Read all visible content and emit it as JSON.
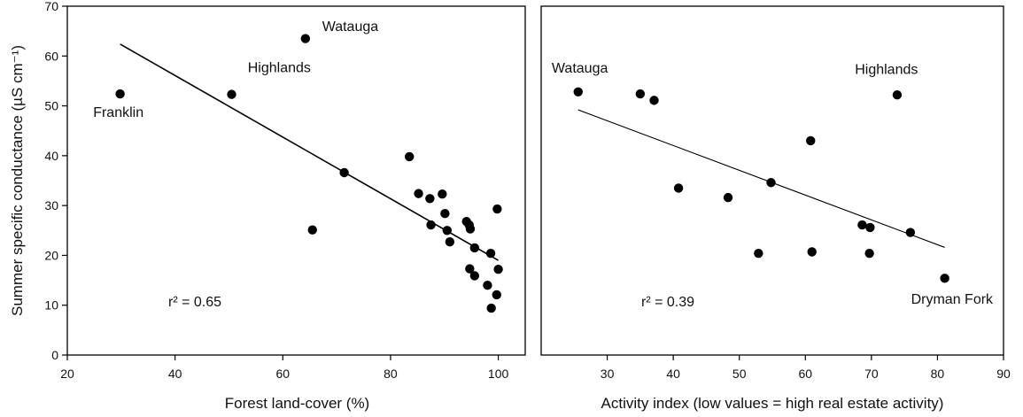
{
  "chart_data": [
    {
      "type": "scatter",
      "xlabel": "Forest land-cover (%)",
      "ylabel": "Summer specific conductance (µS cm⁻¹)",
      "xlim": [
        20,
        105
      ],
      "ylim": [
        0,
        70
      ],
      "xticks": [
        "20",
        "40",
        "60",
        "80",
        "100"
      ],
      "yticks": [
        "0",
        "10",
        "20",
        "30",
        "40",
        "50",
        "60",
        "70"
      ],
      "r2_label": "r² = 0.65",
      "points": [
        {
          "x": 29.8,
          "y": 52.4
        },
        {
          "x": 50.5,
          "y": 52.3
        },
        {
          "x": 64.2,
          "y": 63.5
        },
        {
          "x": 65.5,
          "y": 25.1
        },
        {
          "x": 71.4,
          "y": 36.6
        },
        {
          "x": 83.5,
          "y": 39.8
        },
        {
          "x": 85.2,
          "y": 32.4
        },
        {
          "x": 87.3,
          "y": 31.4
        },
        {
          "x": 87.5,
          "y": 26.1
        },
        {
          "x": 89.6,
          "y": 32.3
        },
        {
          "x": 90.1,
          "y": 28.4
        },
        {
          "x": 90.5,
          "y": 25.0
        },
        {
          "x": 91.0,
          "y": 22.7
        },
        {
          "x": 94.1,
          "y": 26.8
        },
        {
          "x": 94.6,
          "y": 26.1
        },
        {
          "x": 94.7,
          "y": 17.3
        },
        {
          "x": 94.8,
          "y": 25.3
        },
        {
          "x": 95.6,
          "y": 21.5
        },
        {
          "x": 95.6,
          "y": 15.9
        },
        {
          "x": 98.0,
          "y": 14.0
        },
        {
          "x": 98.6,
          "y": 20.4
        },
        {
          "x": 98.7,
          "y": 9.4
        },
        {
          "x": 99.8,
          "y": 29.3
        },
        {
          "x": 99.7,
          "y": 12.1
        },
        {
          "x": 100.0,
          "y": 17.2
        }
      ],
      "trendline": {
        "x": [
          29.8,
          100.0
        ],
        "y": [
          62.4,
          19.0
        ]
      },
      "annotations": [
        {
          "text": "Watauga",
          "x": 67.3,
          "y": 65.0
        },
        {
          "text": "Highlands",
          "x": 53.5,
          "y": 56.8
        },
        {
          "text": "Franklin",
          "x": 24.8,
          "y": 47.8
        }
      ]
    },
    {
      "type": "scatter",
      "xlabel": "Activity index (low values = high real estate activity)",
      "ylabel": "",
      "xlim": [
        20,
        90
      ],
      "ylim": [
        0,
        70
      ],
      "xticks": [
        "30",
        "40",
        "50",
        "60",
        "70",
        "80",
        "90"
      ],
      "r2_label": "r² = 0.39",
      "points": [
        {
          "x": 25.6,
          "y": 52.8
        },
        {
          "x": 35.0,
          "y": 52.4
        },
        {
          "x": 37.1,
          "y": 51.1
        },
        {
          "x": 40.8,
          "y": 33.5
        },
        {
          "x": 48.3,
          "y": 31.6
        },
        {
          "x": 52.9,
          "y": 20.4
        },
        {
          "x": 54.8,
          "y": 34.6
        },
        {
          "x": 60.8,
          "y": 43.0
        },
        {
          "x": 61.0,
          "y": 20.7
        },
        {
          "x": 68.6,
          "y": 26.1
        },
        {
          "x": 69.7,
          "y": 20.4
        },
        {
          "x": 69.8,
          "y": 25.6
        },
        {
          "x": 73.9,
          "y": 52.2
        },
        {
          "x": 75.9,
          "y": 24.6
        },
        {
          "x": 81.1,
          "y": 15.4
        }
      ],
      "trendline": {
        "x": [
          25.6,
          81.1
        ],
        "y": [
          49.2,
          21.6
        ]
      },
      "annotations": [
        {
          "text": "Watauga",
          "x": 21.6,
          "y": 56.7
        },
        {
          "text": "Highlands",
          "x": 67.5,
          "y": 56.4
        },
        {
          "text": "Dryman Fork",
          "x": 76.0,
          "y": 10.3
        }
      ]
    }
  ]
}
